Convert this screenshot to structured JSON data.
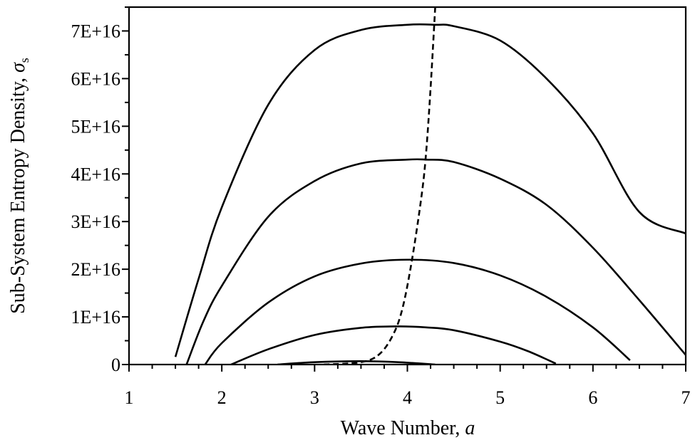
{
  "chart_data": {
    "type": "line",
    "xlabel": "Wave Number, ",
    "xlabel_symbol": "a",
    "ylabel": "Sub-System Entropy Density, ",
    "ylabel_symbol": "σ",
    "ylabel_subscript": "s",
    "xlim": [
      1,
      7
    ],
    "ylim": [
      0,
      7.5e+16
    ],
    "x_ticks": [
      1,
      2,
      3,
      4,
      5,
      6,
      7
    ],
    "x_tick_labels": [
      "1",
      "2",
      "3",
      "4",
      "5",
      "6",
      "7"
    ],
    "y_ticks": [
      0,
      1e+16,
      2e+16,
      3e+16,
      4e+16,
      5e+16,
      6e+16,
      7e+16
    ],
    "y_tick_labels": [
      "0",
      "1E+16",
      "2E+16",
      "3E+16",
      "4E+16",
      "5E+16",
      "6E+16",
      "7E+16"
    ],
    "grid": false,
    "legend": "none",
    "series": [
      {
        "style": "solid",
        "x": [
          1.5,
          1.75,
          2.0,
          2.5,
          3.0,
          3.5,
          4.0,
          4.3,
          4.5,
          5.0,
          5.5,
          6.0,
          6.5,
          7.0
        ],
        "y": [
          1600000000000000.0,
          1.8e+16,
          3.3e+16,
          5.45e+16,
          6.6e+16,
          7.02e+16,
          7.13e+16,
          7.13e+16,
          7.1e+16,
          6.8e+16,
          6e+16,
          4.85e+16,
          3.2e+16,
          2.75e+16
        ]
      },
      {
        "style": "solid",
        "x": [
          1.62,
          1.8,
          2.0,
          2.5,
          3.0,
          3.5,
          4.0,
          4.2,
          4.5,
          5.0,
          5.5,
          6.0,
          6.5,
          7.0
        ],
        "y": [
          0,
          9000000000000000.0,
          1.65e+16,
          3.1e+16,
          3.85e+16,
          4.22e+16,
          4.3e+16,
          4.3e+16,
          4.25e+16,
          3.9e+16,
          3.35e+16,
          2.45e+16,
          1.35e+16,
          2000000000000000.0
        ]
      },
      {
        "style": "solid",
        "x": [
          1.82,
          2.0,
          2.5,
          3.0,
          3.5,
          4.0,
          4.5,
          5.0,
          5.5,
          6.0,
          6.4
        ],
        "y": [
          0,
          4500000000000000.0,
          1.3e+16,
          1.85e+16,
          2.12e+16,
          2.2e+16,
          2.13e+16,
          1.87e+16,
          1.42e+16,
          7800000000000000.0,
          900000000000000.0
        ]
      },
      {
        "style": "solid",
        "x": [
          2.1,
          2.5,
          3.0,
          3.5,
          3.9,
          4.2,
          4.5,
          5.0,
          5.3,
          5.6
        ],
        "y": [
          0,
          3200000000000000.0,
          6200000000000000.0,
          7700000000000000.0,
          8000000000000000.0,
          7800000000000000.0,
          7200000000000000.0,
          4800000000000000.0,
          2800000000000000.0,
          200000000000000.0
        ]
      },
      {
        "style": "solid",
        "x": [
          2.6,
          3.0,
          3.5,
          3.9,
          4.3
        ],
        "y": [
          0,
          500000000000000.0,
          700000000000000.0,
          500000000000000.0,
          0
        ]
      },
      {
        "style": "dashed",
        "x": [
          3.1,
          3.5,
          3.7,
          3.85,
          3.95,
          4.05,
          4.15,
          4.2,
          4.25,
          4.3
        ],
        "y": [
          0,
          500000000000000.0,
          2200000000000000.0,
          6400000000000000.0,
          1.2e+16,
          2.2e+16,
          3.5e+16,
          4.4e+16,
          5.8e+16,
          7.5e+16
        ]
      }
    ]
  }
}
